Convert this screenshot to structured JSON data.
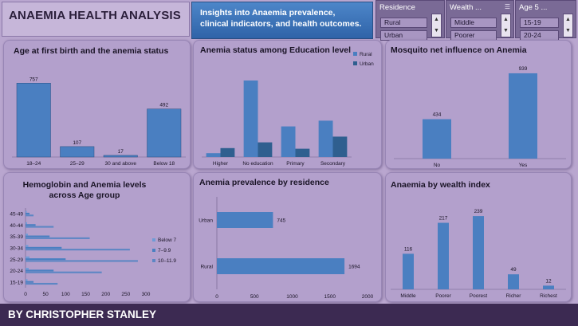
{
  "header": {
    "title": "ANAEMIA HEALTH ANALYSIS",
    "subtitle": "Insights into Anaemia prevalence, clinical indicators, and health outcomes."
  },
  "slicers": [
    {
      "name": "Residence",
      "items": [
        "Rural",
        "Urban"
      ]
    },
    {
      "name": "Wealth ...",
      "items": [
        "Middle",
        "Poorer"
      ]
    },
    {
      "name": "Age 5 ...",
      "items": [
        "15-19",
        "20-24"
      ]
    }
  ],
  "footer": {
    "text": "BY CHRISTOPHER STANLEY"
  },
  "colors": {
    "primary": "#4a7fc1",
    "secondary": "#2f5f8f",
    "bar_dark": "#2c5a86"
  },
  "chart_data": [
    {
      "id": "age-first-birth",
      "type": "bar",
      "title": "Age at first birth and the anemia status",
      "categories": [
        "18–24",
        "25–29",
        "30 and above",
        "Below 18"
      ],
      "values": [
        757,
        107,
        17,
        492
      ],
      "ylim": [
        0,
        800
      ]
    },
    {
      "id": "education",
      "type": "bar",
      "title": "Anemia status among Education level",
      "categories": [
        "Higher",
        "No education",
        "Primary",
        "Secondary"
      ],
      "series": [
        {
          "name": "Rural",
          "values": [
            30,
            600,
            240,
            285
          ]
        },
        {
          "name": "Urban",
          "values": [
            70,
            115,
            65,
            160
          ]
        }
      ],
      "ylim": [
        0,
        650
      ],
      "legend": "top-right"
    },
    {
      "id": "mosquito-net",
      "type": "bar",
      "title": "Mosquito net influence on Anemia",
      "categories": [
        "No",
        "Yes"
      ],
      "values": [
        434,
        939
      ],
      "ylim": [
        0,
        1000
      ]
    },
    {
      "id": "hemoglobin-age",
      "type": "bar",
      "orientation": "horizontal",
      "title": "Hemoglobin and Anemia levels across Age group",
      "categories": [
        "15-19",
        "20-24",
        "25-29",
        "30-34",
        "35-39",
        "40-44",
        "45-49"
      ],
      "series": [
        {
          "name": "Below 7",
          "values": [
            5,
            8,
            10,
            7,
            6,
            4,
            3
          ]
        },
        {
          "name": "7–9.9",
          "values": [
            20,
            70,
            100,
            90,
            60,
            25,
            10
          ]
        },
        {
          "name": "10–11.9",
          "values": [
            80,
            190,
            280,
            260,
            160,
            70,
            20
          ]
        }
      ],
      "xticks": [
        0,
        50,
        100,
        150,
        200,
        250,
        300
      ],
      "xlim": [
        0,
        300
      ],
      "legend": "right"
    },
    {
      "id": "residence",
      "type": "bar",
      "orientation": "horizontal",
      "title": "Anemia prevalence by residence",
      "categories": [
        "Urban",
        "Rural"
      ],
      "values": [
        745,
        1694
      ],
      "xticks": [
        0,
        500,
        1000,
        1500,
        2000
      ],
      "xlim": [
        0,
        2000
      ]
    },
    {
      "id": "wealth",
      "type": "bar",
      "title": "Anaemia by wealth index",
      "categories": [
        "Middle",
        "Poorer",
        "Poorest",
        "Richer",
        "Richest"
      ],
      "values": [
        116,
        217,
        239,
        49,
        12
      ],
      "ylim": [
        0,
        260
      ]
    }
  ]
}
